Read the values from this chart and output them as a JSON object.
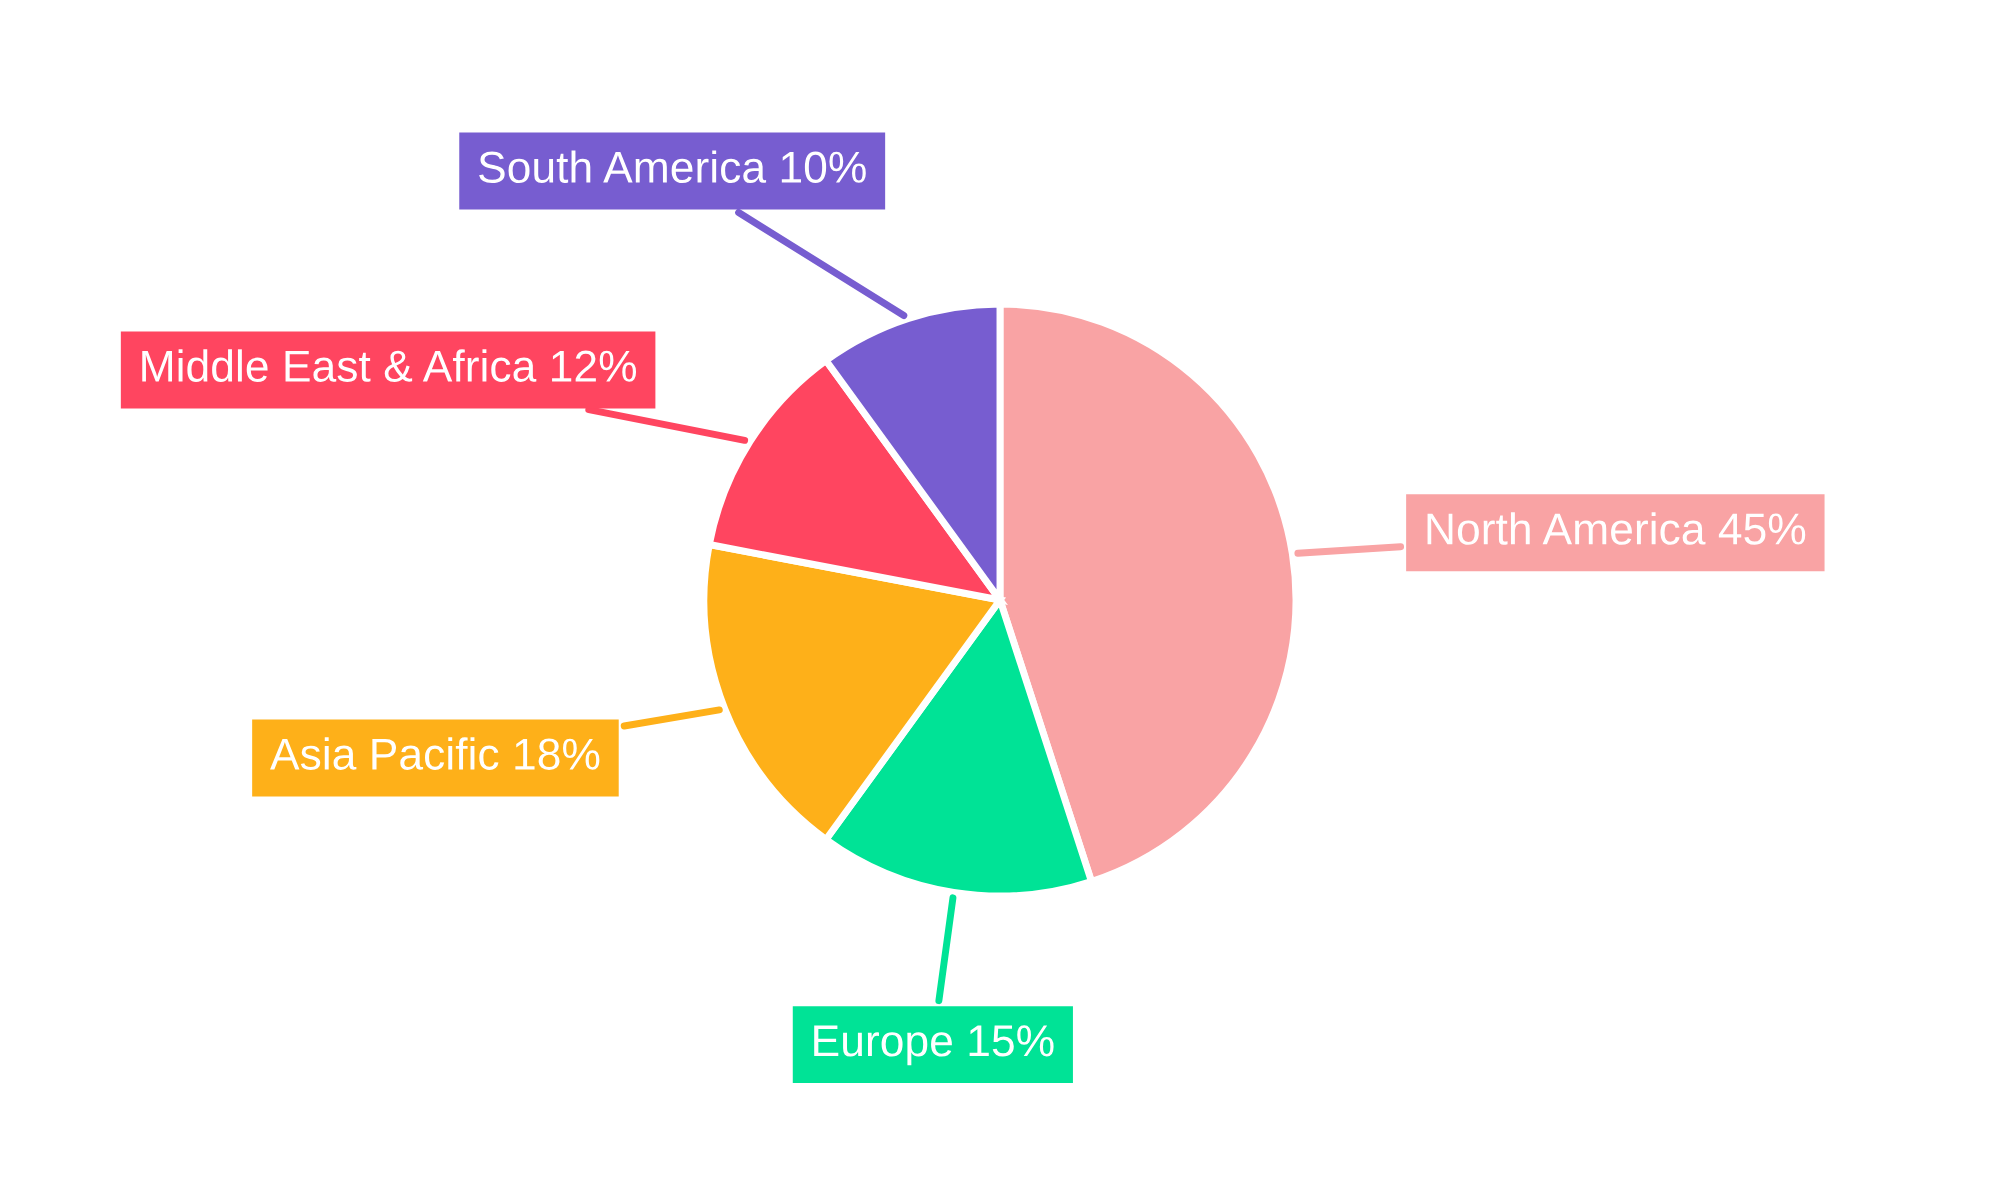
{
  "chart_data": {
    "type": "pie",
    "categories": [
      "North America",
      "Europe",
      "Asia Pacific",
      "Middle East & Africa",
      "South America"
    ],
    "values": [
      45,
      15,
      18,
      12,
      10
    ],
    "colors": [
      "#f9a3a4",
      "#00e396",
      "#feb019",
      "#ff4560",
      "#775dd0"
    ],
    "value_labels": [
      "45%",
      "15%",
      "18%",
      "12%",
      "10%"
    ]
  }
}
